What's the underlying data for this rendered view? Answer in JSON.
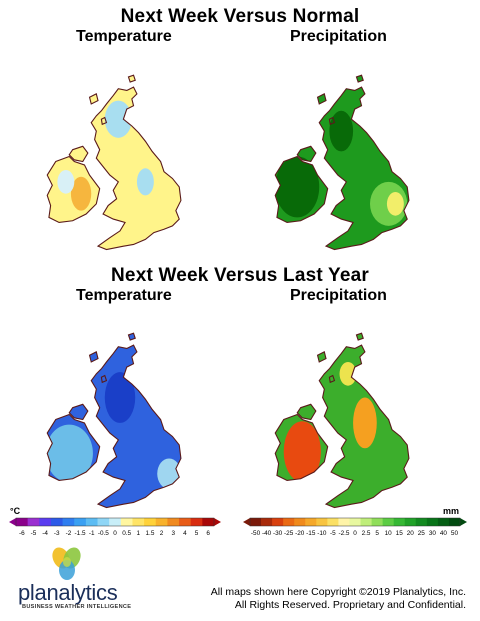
{
  "top_section": {
    "title": "Next Week Versus Normal",
    "left_label": "Temperature",
    "right_label": "Precipitation"
  },
  "bottom_section": {
    "title": "Next Week Versus Last Year",
    "left_label": "Temperature",
    "right_label": "Precipitation"
  },
  "maps": [
    {
      "id": "normal-temperature",
      "fill": "#fff48a",
      "accents": [
        "#a8def0",
        "#f6b63e",
        "#d8f0f6"
      ]
    },
    {
      "id": "normal-precipitation",
      "fill": "#1e9a1e",
      "accents": [
        "#086a08",
        "#6fcf4a",
        "#f2ee6a"
      ]
    },
    {
      "id": "lastyear-temperature",
      "fill": "#2f62de",
      "accents": [
        "#6bbde8",
        "#1a3fc8",
        "#9fd6f0"
      ]
    },
    {
      "id": "lastyear-precipitation",
      "fill": "#3cae2c",
      "accents": [
        "#e84a10",
        "#f5a020",
        "#ece34e"
      ]
    }
  ],
  "temperature_legend": {
    "unit": "°C",
    "labels": [
      "-6",
      "-5",
      "-4",
      "-3",
      "-2",
      "-1.5",
      "-1",
      "-0.5",
      "0",
      "0.5",
      "1",
      "1.5",
      "2",
      "3",
      "4",
      "5",
      "6"
    ],
    "colors": [
      "#8b008b",
      "#9a2fd0",
      "#5a3cf0",
      "#2d5ae8",
      "#2f7ef0",
      "#3aa0f2",
      "#5cbcf3",
      "#8fd6f6",
      "#c8eef8",
      "#fff6a0",
      "#ffe466",
      "#ffd23a",
      "#f8b22c",
      "#f08a20",
      "#e85c18",
      "#d82c10",
      "#a80808"
    ]
  },
  "precip_legend": {
    "unit": "mm",
    "labels": [
      "-50",
      "-40",
      "-30",
      "-25",
      "-20",
      "-15",
      "-10",
      "-5",
      "-2.5",
      "0",
      "2.5",
      "5",
      "10",
      "15",
      "20",
      "25",
      "30",
      "40",
      "50"
    ],
    "colors": [
      "#7a1a0a",
      "#a82a0a",
      "#d8400e",
      "#ea6a14",
      "#f08a1c",
      "#f5a82a",
      "#f8c440",
      "#fbe064",
      "#fff4a8",
      "#e8f8a0",
      "#bfee7a",
      "#90de5a",
      "#5ccc44",
      "#36b834",
      "#20a228",
      "#128a20",
      "#087418",
      "#045e14",
      "#024a10"
    ]
  },
  "logo": {
    "brand": "planalytics",
    "tagline": "BUSINESS WEATHER INTELLIGENCE"
  },
  "copyright": {
    "line1": "All maps shown here Copyright ©2019 Planalytics, Inc.",
    "line2": "All Rights Reserved. Proprietary and Confidential."
  }
}
